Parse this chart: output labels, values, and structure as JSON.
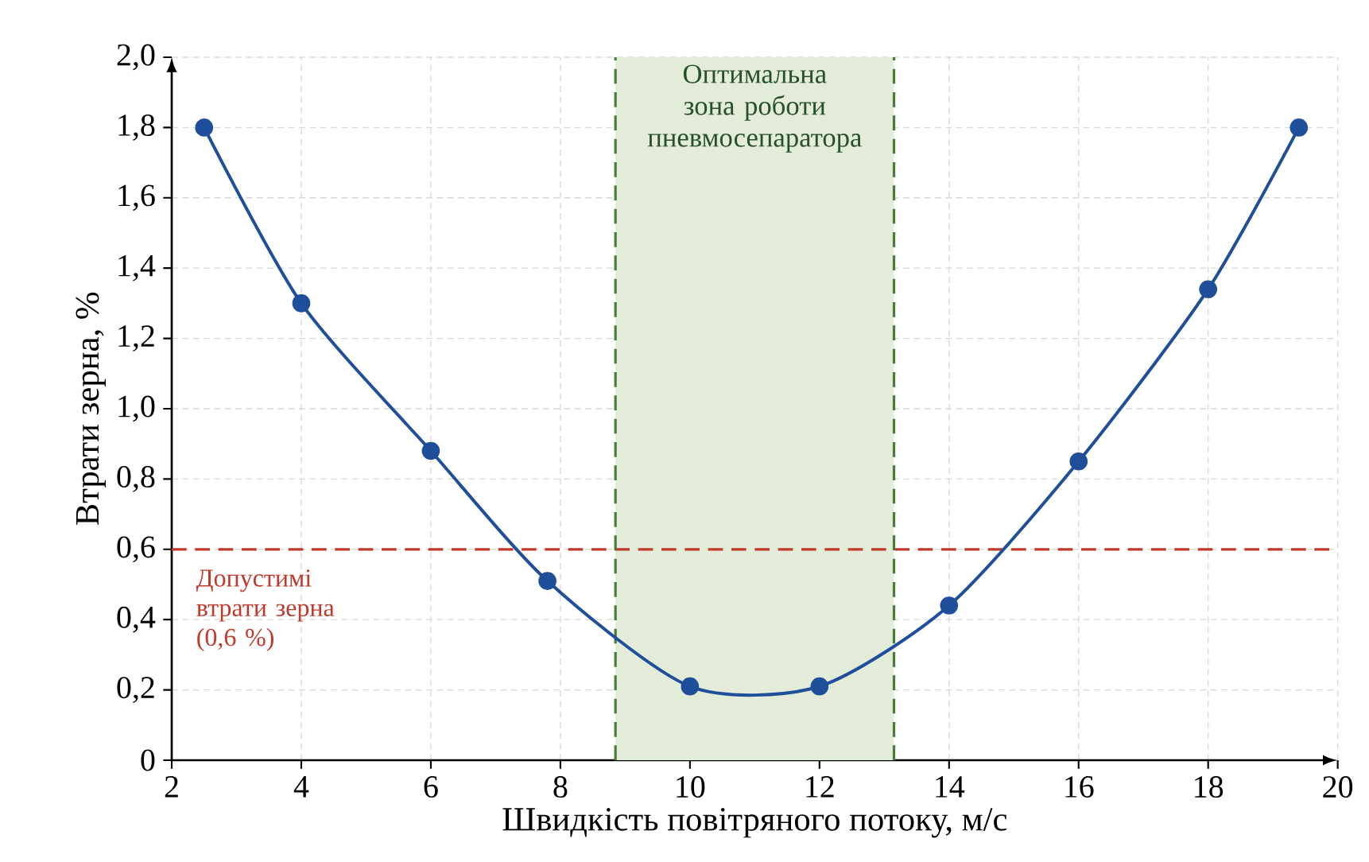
{
  "chart_data": {
    "type": "line",
    "xlabel": "Швидкість повітряного потоку, м/с",
    "ylabel": "Втрати зерна, %",
    "x": [
      2.5,
      4,
      6,
      7.8,
      10,
      12,
      14,
      16,
      18,
      19.4
    ],
    "series": [
      {
        "color": "#1f4e9a",
        "values": [
          1.8,
          1.3,
          0.88,
          0.51,
          0.21,
          0.21,
          0.44,
          0.85,
          1.34,
          1.8
        ]
      }
    ],
    "xlim": [
      2,
      20
    ],
    "ylim": [
      0,
      2.0
    ],
    "xticks": [
      2,
      4,
      6,
      8,
      10,
      12,
      14,
      16,
      18,
      20
    ],
    "yticks": [
      0,
      {
        "value": 0.2,
        "label": "0,2"
      },
      {
        "value": 0.4,
        "label": "0,4"
      },
      {
        "value": 0.6,
        "label": "0,6"
      },
      {
        "value": 0.8,
        "label": "0,8"
      },
      {
        "value": 1.0,
        "label": "1,0"
      },
      {
        "value": 1.2,
        "label": "1,2"
      },
      {
        "value": 1.4,
        "label": "1,4"
      },
      {
        "value": 1.6,
        "label": "1,6"
      },
      {
        "value": 1.8,
        "label": "1,8"
      },
      {
        "value": 2.0,
        "label": "2,0"
      }
    ],
    "ref_lines": [
      {
        "axis": "y",
        "value": 0.6,
        "label": "Допустимі втрати зерна (0,6 %)",
        "color": "#c0392b",
        "line_style": "dashed"
      },
      {
        "axis": "x",
        "value": 8.85,
        "color": "#4a7a3a",
        "line_style": "dashed"
      },
      {
        "axis": "x",
        "value": 13.15,
        "color": "#4a7a3a",
        "line_style": "dashed"
      }
    ],
    "bands": [
      {
        "axis": "x",
        "from": 8.85,
        "to": 13.15,
        "label": "Оптимальна зона роботи пневмосепаратора",
        "color": "#e3ecd8"
      }
    ],
    "grid": true,
    "marker": "circle",
    "line_style": "solid"
  }
}
